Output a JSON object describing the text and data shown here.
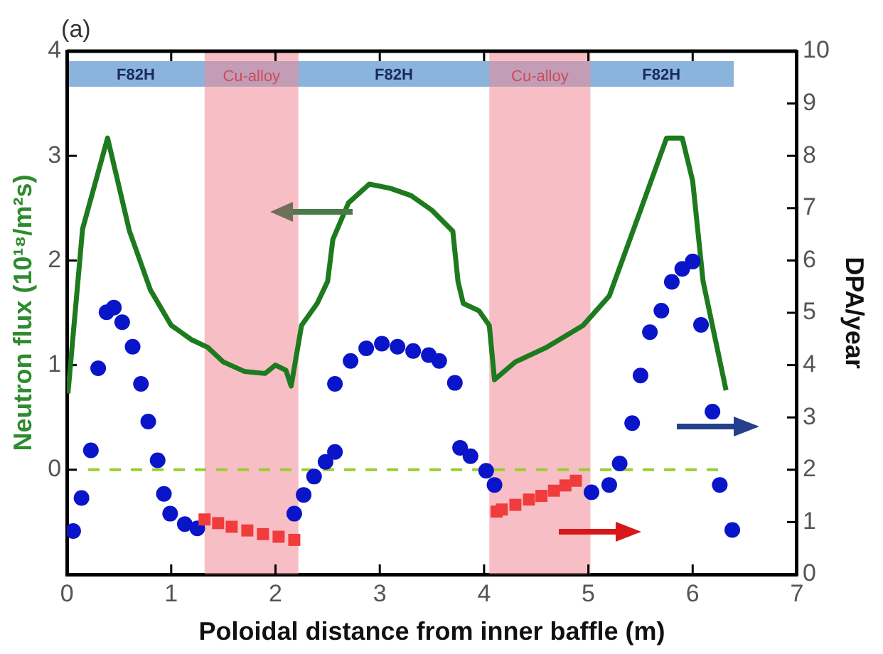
{
  "chart_data": {
    "type": "line",
    "xlabel": "Poloidal distance from inner baffle (m)",
    "ylabel": "Neutron flux (10¹⁸/m²s)",
    "y2label": "DPA/year",
    "xlim": [
      0,
      7
    ],
    "xticks": [
      0,
      1,
      2,
      3,
      4,
      5,
      6,
      7
    ],
    "ylim": [
      -1,
      4
    ],
    "yticks": [
      0,
      1,
      2,
      3,
      4
    ],
    "y2lim": [
      0,
      10
    ],
    "y2ticks": [
      0,
      1,
      2,
      3,
      4,
      5,
      6,
      7,
      8,
      9,
      10
    ],
    "grid": false,
    "legend": false,
    "annotations": [
      "(a)",
      "F82H",
      "F82H",
      "F82H"
    ],
    "bands": [
      {
        "axis": "x",
        "from": 1.32,
        "to": 2.22,
        "label": "Cu-alloy",
        "color": "#f08a96"
      },
      {
        "axis": "x",
        "from": 4.05,
        "to": 5.02,
        "label": "Cu-alloy",
        "color": "#f08a96"
      }
    ],
    "ref_lines": [
      {
        "axis": "y",
        "value": 0,
        "color": "#9acd32",
        "line_style": "dashed"
      }
    ],
    "series": [
      {
        "color": "#1e7a1e",
        "marker": "none",
        "x": [
          0.01,
          0.15,
          0.39,
          0.6,
          0.8,
          1.0,
          1.2,
          1.35,
          1.5,
          1.7,
          1.9,
          2.0,
          2.1,
          2.15,
          2.25,
          2.4,
          2.5,
          2.55,
          2.7,
          2.9,
          3.1,
          3.3,
          3.5,
          3.7,
          3.75,
          3.8,
          3.95,
          4.05,
          4.1,
          4.3,
          4.6,
          4.95,
          5.2,
          5.5,
          5.75,
          5.9,
          6.0,
          6.1,
          6.32
        ],
        "values": [
          0.73,
          2.3,
          3.17,
          2.28,
          1.72,
          1.38,
          1.24,
          1.17,
          1.03,
          0.94,
          0.92,
          1.0,
          0.95,
          0.8,
          1.38,
          1.59,
          1.8,
          2.2,
          2.55,
          2.73,
          2.69,
          2.62,
          2.48,
          2.28,
          1.8,
          1.59,
          1.52,
          1.38,
          0.86,
          1.03,
          1.17,
          1.38,
          1.66,
          2.48,
          3.17,
          3.17,
          2.76,
          1.8,
          0.76
        ]
      },
      {
        "type": "scatter",
        "axis": "y2",
        "color": "#0a14c8",
        "marker": "circle",
        "x": [
          0.06,
          0.14,
          0.23,
          0.3,
          0.38,
          0.45,
          0.53,
          0.63,
          0.71,
          0.78,
          0.87,
          0.93,
          0.99,
          1.13,
          1.25,
          2.18,
          2.27,
          2.37,
          2.48,
          2.57,
          2.57,
          2.72,
          2.87,
          3.02,
          3.17,
          3.32,
          3.47,
          3.57,
          3.72,
          3.77,
          3.87,
          4.02,
          4.1,
          5.03,
          5.2,
          5.3,
          5.42,
          5.5,
          5.59,
          5.7,
          5.8,
          5.9,
          6.0,
          6.08,
          6.19,
          6.26,
          6.38
        ],
        "values": [
          0.83,
          1.46,
          2.37,
          3.94,
          5.01,
          5.1,
          4.82,
          4.35,
          3.64,
          2.92,
          2.18,
          1.54,
          1.16,
          0.96,
          0.88,
          1.16,
          1.52,
          1.87,
          2.15,
          2.34,
          3.64,
          4.08,
          4.32,
          4.41,
          4.35,
          4.27,
          4.19,
          4.08,
          3.66,
          2.42,
          2.26,
          1.98,
          1.71,
          1.57,
          1.71,
          2.12,
          2.89,
          3.8,
          4.63,
          5.04,
          5.59,
          5.84,
          5.98,
          4.77,
          3.11,
          1.71,
          0.85
        ]
      },
      {
        "type": "scatter",
        "axis": "y2",
        "color": "#f03c3c",
        "marker": "square",
        "x": [
          1.32,
          1.45,
          1.58,
          1.73,
          1.88,
          2.03,
          2.18,
          4.12,
          4.17,
          4.3,
          4.43,
          4.55,
          4.67,
          4.78,
          4.88
        ],
        "values": [
          1.05,
          0.98,
          0.91,
          0.84,
          0.77,
          0.72,
          0.66,
          1.2,
          1.24,
          1.33,
          1.43,
          1.5,
          1.6,
          1.7,
          1.79
        ]
      }
    ]
  }
}
